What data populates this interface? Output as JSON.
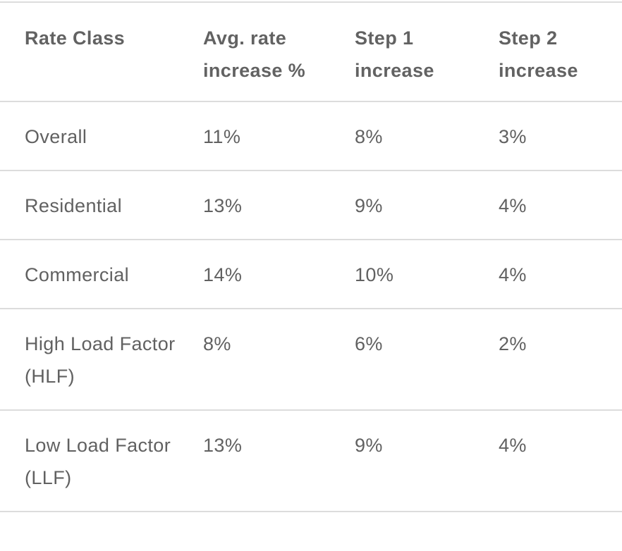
{
  "table": {
    "headers": [
      "Rate Class",
      "Avg. rate increase %",
      "Step 1 increase",
      "Step 2 increase"
    ],
    "rows": [
      [
        "Overall",
        "11%",
        "8%",
        "3%"
      ],
      [
        "Residential",
        "13%",
        "9%",
        "4%"
      ],
      [
        "Commercial",
        "14%",
        "10%",
        "4%"
      ],
      [
        "High Load Factor (HLF)",
        "8%",
        "6%",
        "2%"
      ],
      [
        "Low Load Factor (LLF)",
        "13%",
        "9%",
        "4%"
      ]
    ]
  }
}
